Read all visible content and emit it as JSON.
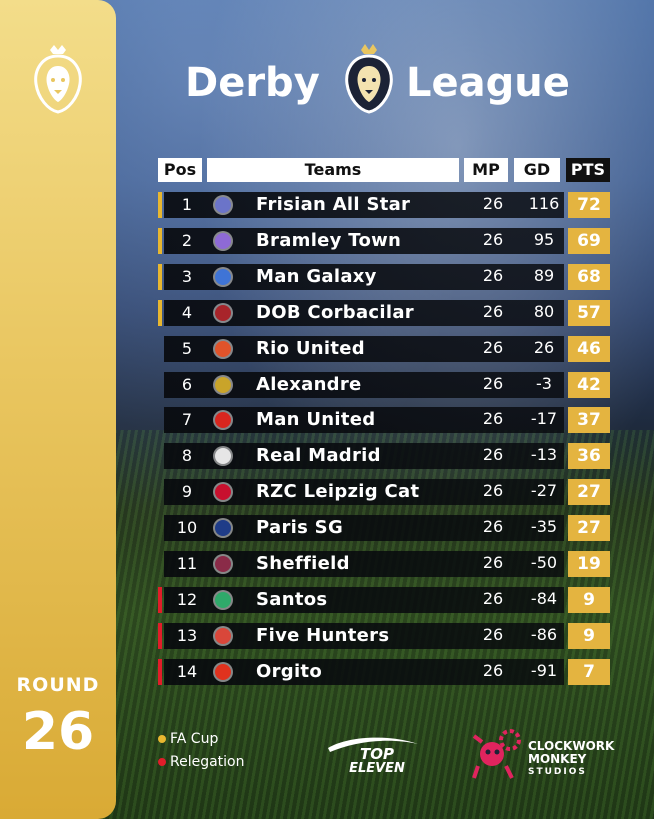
{
  "title": {
    "left": "Derby",
    "right": "League"
  },
  "sidebar": {
    "round_label": "ROUND",
    "round_number": "26"
  },
  "header": {
    "pos": "Pos",
    "teams": "Teams",
    "mp": "MP",
    "gd": "GD",
    "pts": "PTS"
  },
  "colors": {
    "fa_cup": "#e8b730",
    "relegation": "#e11d2a",
    "gold": "#e4b440"
  },
  "rows": [
    {
      "pos": "1",
      "team": "Frisian All Star",
      "mp": "26",
      "gd": "116",
      "pts": "72",
      "zone": "fa-cup",
      "crest": "#6b74c9"
    },
    {
      "pos": "2",
      "team": "Bramley Town",
      "mp": "26",
      "gd": "95",
      "pts": "69",
      "zone": "fa-cup",
      "crest": "#8e6ad6"
    },
    {
      "pos": "3",
      "team": "Man Galaxy",
      "mp": "26",
      "gd": "89",
      "pts": "68",
      "zone": "fa-cup",
      "crest": "#3f74d6"
    },
    {
      "pos": "4",
      "team": "DOB Corbacilar",
      "mp": "26",
      "gd": "80",
      "pts": "57",
      "zone": "fa-cup",
      "crest": "#a8242a"
    },
    {
      "pos": "5",
      "team": "Rio United",
      "mp": "26",
      "gd": "26",
      "pts": "46",
      "zone": "none",
      "crest": "#e0532a"
    },
    {
      "pos": "6",
      "team": "Alexandre",
      "mp": "26",
      "gd": "-3",
      "pts": "42",
      "zone": "none",
      "crest": "#c9a42a"
    },
    {
      "pos": "7",
      "team": "Man United",
      "mp": "26",
      "gd": "-17",
      "pts": "37",
      "zone": "none",
      "crest": "#d8261f"
    },
    {
      "pos": "8",
      "team": "Real Madrid",
      "mp": "26",
      "gd": "-13",
      "pts": "36",
      "zone": "none",
      "crest": "#e6e6e6"
    },
    {
      "pos": "9",
      "team": "RZC Leipzig Cat",
      "mp": "26",
      "gd": "-27",
      "pts": "27",
      "zone": "none",
      "crest": "#c8102e"
    },
    {
      "pos": "10",
      "team": "Paris SG",
      "mp": "26",
      "gd": "-35",
      "pts": "27",
      "zone": "none",
      "crest": "#1f3c88"
    },
    {
      "pos": "11",
      "team": "Sheffield",
      "mp": "26",
      "gd": "-50",
      "pts": "19",
      "zone": "none",
      "crest": "#8a2b48"
    },
    {
      "pos": "12",
      "team": "Santos",
      "mp": "26",
      "gd": "-84",
      "pts": "9",
      "zone": "relegation",
      "crest": "#2fa96a"
    },
    {
      "pos": "13",
      "team": "Five Hunters",
      "mp": "26",
      "gd": "-86",
      "pts": "9",
      "zone": "relegation",
      "crest": "#d9473a"
    },
    {
      "pos": "14",
      "team": "Orgito",
      "mp": "26",
      "gd": "-91",
      "pts": "7",
      "zone": "relegation",
      "crest": "#e0321e"
    }
  ],
  "legend": {
    "fa_cup": "FA Cup",
    "relegation": "Relegation"
  },
  "brands": {
    "top_eleven_1": "TOP",
    "top_eleven_2": "ELEVEN",
    "cms_1": "CLOCKWORK",
    "cms_2": "MONKEY",
    "cms_3": "STUDIOS"
  }
}
